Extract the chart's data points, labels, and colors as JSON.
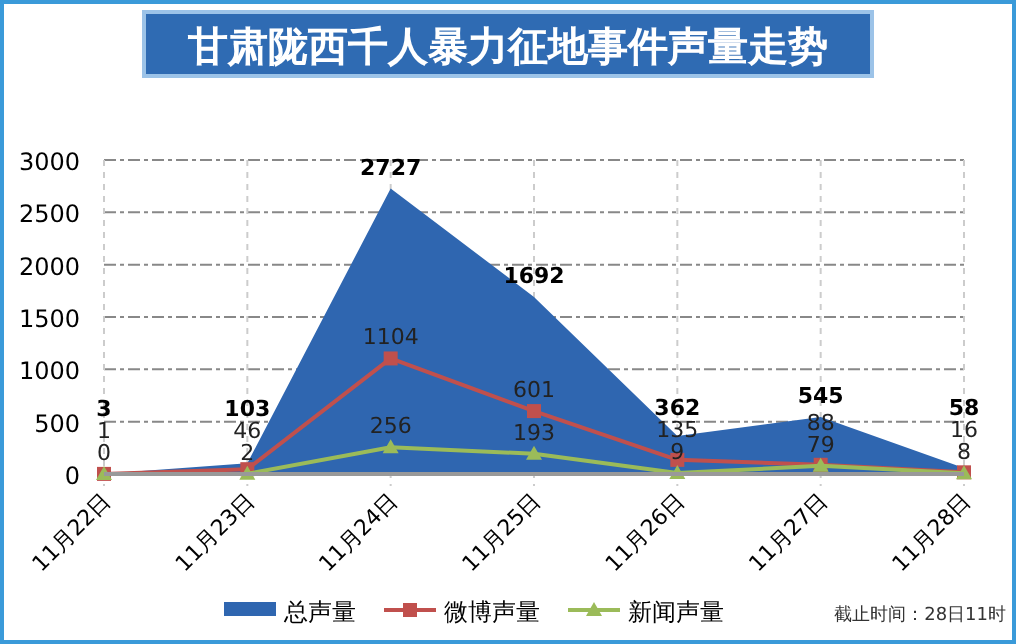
{
  "chart_data": {
    "type": "area",
    "title": "甘肃陇西千人暴力征地事件声量走势",
    "categories": [
      "11月22日",
      "11月23日",
      "11月24日",
      "11月25日",
      "11月26日",
      "11月27日",
      "11月28日"
    ],
    "series": [
      {
        "name": "总声量",
        "color": "#2f66b0",
        "values": [
          3,
          103,
          2727,
          1692,
          362,
          545,
          58
        ]
      },
      {
        "name": "微博声量",
        "type": "line",
        "color": "#c0504d",
        "marker": "square",
        "values": [
          1,
          46,
          1104,
          601,
          135,
          88,
          16
        ]
      },
      {
        "name": "新闻声量",
        "type": "line",
        "color": "#9bbb59",
        "marker": "triangle",
        "values": [
          0,
          2,
          256,
          193,
          9,
          79,
          8
        ]
      }
    ],
    "ylim": [
      0,
      3000
    ],
    "yticks": [
      0,
      500,
      1000,
      1500,
      2000,
      2500,
      3000
    ],
    "grid": true,
    "data_labels": true,
    "legend": "bottom",
    "annotations": [
      "截止时间：28日11时"
    ]
  }
}
